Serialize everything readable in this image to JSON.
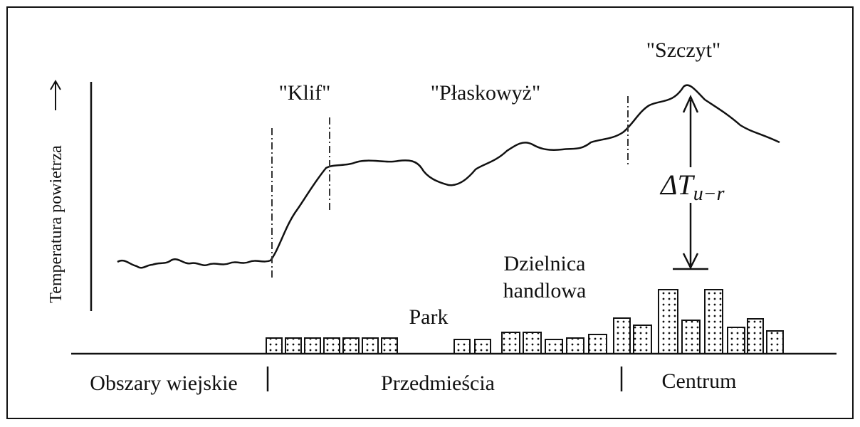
{
  "axis_label": "Temperatura powietrza",
  "zones": {
    "cliff": "\"Klif\"",
    "plateau": "\"Płaskowyż\"",
    "peak": "\"Szczyt\""
  },
  "delta": {
    "symbol": "ΔT",
    "subscript": "u−r"
  },
  "features": {
    "park": "Park",
    "district_line1": "Dzielnica",
    "district_line2": "handlowa"
  },
  "areas": {
    "rural": "Obszary wiejskie",
    "suburbs": "Przedmieścia",
    "center": "Centrum"
  }
}
